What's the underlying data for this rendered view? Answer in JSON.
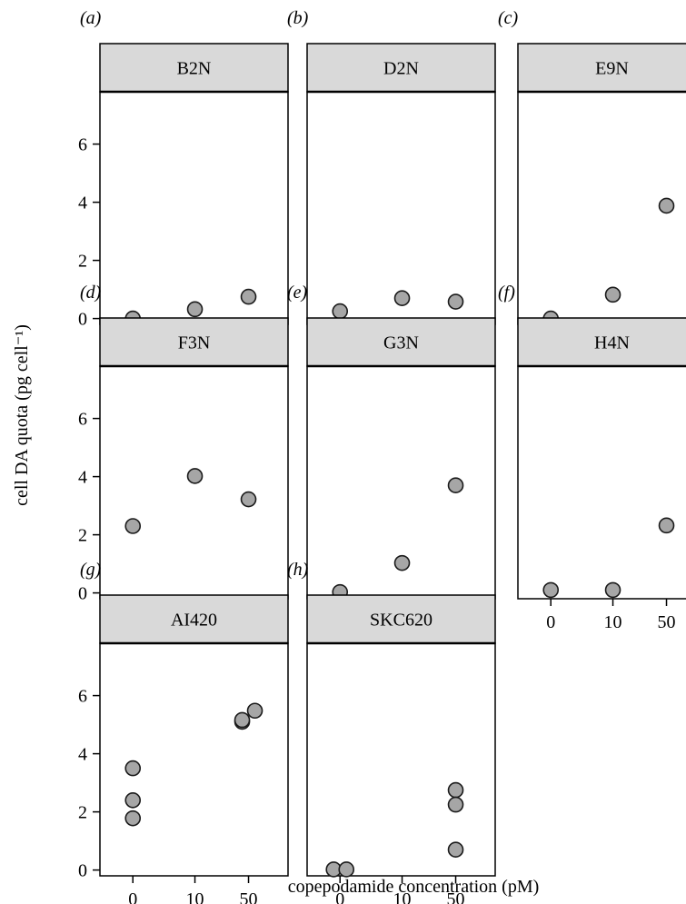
{
  "colors": {
    "point_fill": "#a6a6a6",
    "point_stroke": "#1a1a1a",
    "strip_fill": "#d9d9d9",
    "panel_border": "#000000",
    "background": "#ffffff"
  },
  "chart_data": {
    "type": "scatter",
    "layout": "faceted 3x3 grid of panels sharing axes",
    "xlabel": "copepodamide concentration (pM)",
    "ylabel": "cell DA quota (pg cell⁻¹)",
    "x_categories": [
      "0",
      "10",
      "50"
    ],
    "y_ticks": [
      0,
      2,
      4,
      6
    ],
    "ylim": [
      -0.2,
      7.8
    ],
    "grid": false,
    "panels": [
      {
        "label": "(a)",
        "title": "B2N",
        "points": [
          {
            "x": "0",
            "y": 0.0
          },
          {
            "x": "10",
            "y": 0.32
          },
          {
            "x": "50",
            "y": 0.75
          }
        ]
      },
      {
        "label": "(b)",
        "title": "D2N",
        "points": [
          {
            "x": "0",
            "y": 0.25
          },
          {
            "x": "10",
            "y": 0.7
          },
          {
            "x": "50",
            "y": 0.58
          }
        ]
      },
      {
        "label": "(c)",
        "title": "E9N",
        "points": [
          {
            "x": "0",
            "y": 0.0
          },
          {
            "x": "10",
            "y": 0.82
          },
          {
            "x": "50",
            "y": 3.88
          }
        ]
      },
      {
        "label": "(d)",
        "title": "F3N",
        "points": [
          {
            "x": "0",
            "y": 2.3
          },
          {
            "x": "10",
            "y": 4.02
          },
          {
            "x": "50",
            "y": 3.22
          }
        ]
      },
      {
        "label": "(e)",
        "title": "G3N",
        "points": [
          {
            "x": "0",
            "y": 0.03
          },
          {
            "x": "10",
            "y": 1.03
          },
          {
            "x": "50",
            "y": 3.7
          }
        ]
      },
      {
        "label": "(f)",
        "title": "H4N",
        "points": [
          {
            "x": "0",
            "y": 0.1
          },
          {
            "x": "10",
            "y": 0.1
          },
          {
            "x": "50",
            "y": 2.32
          }
        ]
      },
      {
        "label": "(g)",
        "title": "AI420",
        "points": [
          {
            "x": "0",
            "y": 3.5
          },
          {
            "x": "0",
            "y": 2.4
          },
          {
            "x": "0",
            "y": 1.78
          },
          {
            "x": "50",
            "y": 5.48
          },
          {
            "x": "50",
            "y": 5.1
          },
          {
            "x": "50",
            "y": 5.16
          }
        ]
      },
      {
        "label": "(h)",
        "title": "SKC620",
        "points": [
          {
            "x": "0",
            "y": 0.02
          },
          {
            "x": "0",
            "y": 0.02
          },
          {
            "x": "50",
            "y": 2.75
          },
          {
            "x": "50",
            "y": 2.25
          },
          {
            "x": "50",
            "y": 0.7
          }
        ]
      }
    ]
  }
}
